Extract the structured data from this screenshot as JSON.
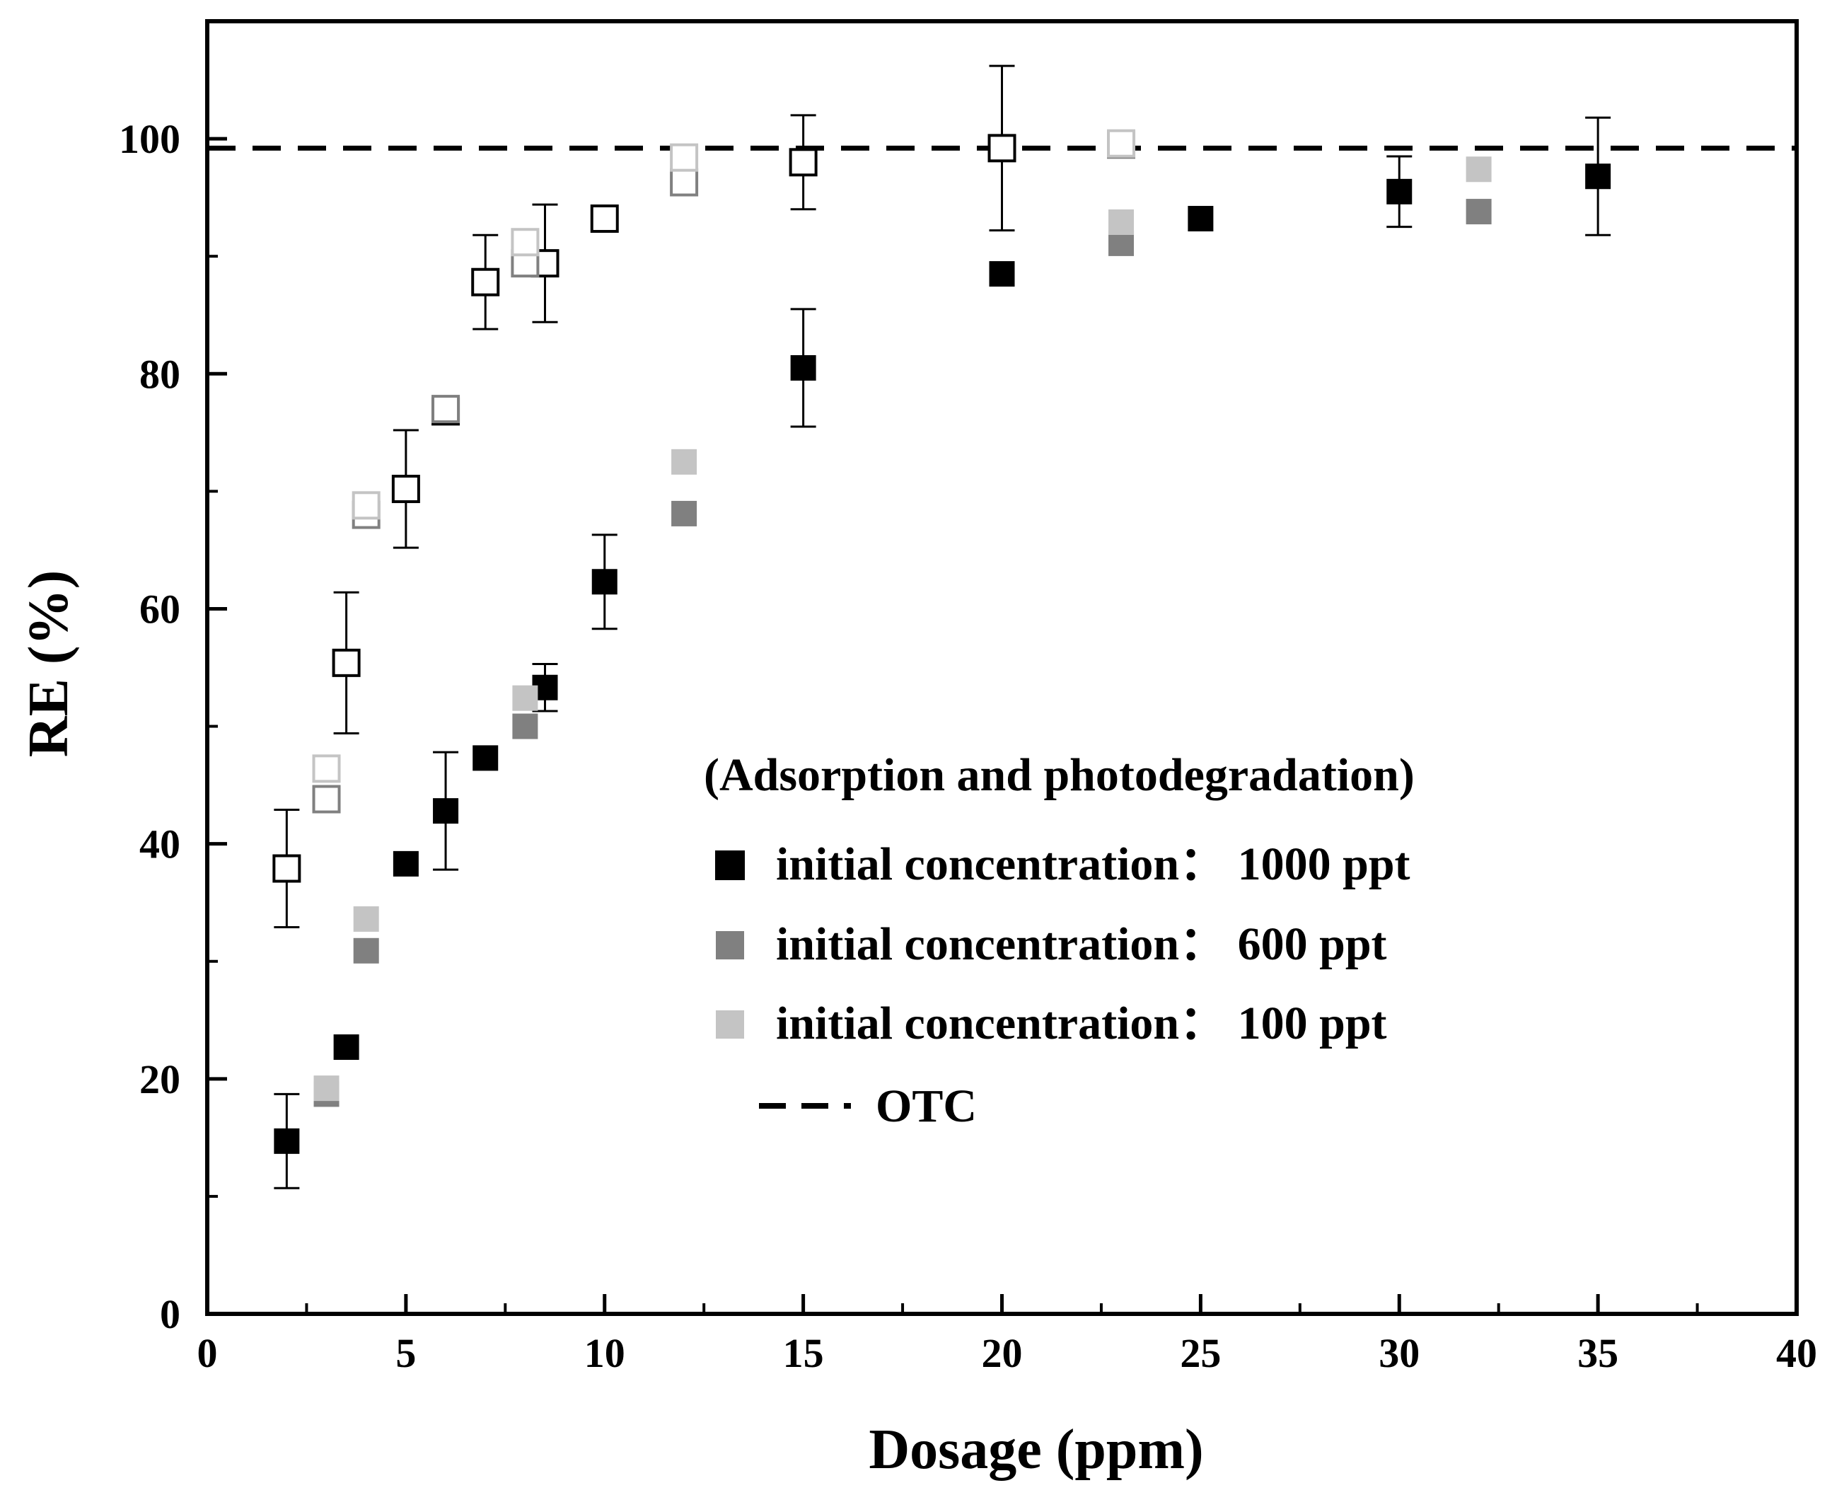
{
  "chart_data": {
    "type": "scatter",
    "xlabel": "Dosage (ppm)",
    "ylabel": "RE (%)",
    "xlim": [
      0,
      40
    ],
    "ylim": [
      0,
      110
    ],
    "xticks": [
      0,
      5,
      10,
      15,
      20,
      25,
      30,
      35,
      40
    ],
    "yticks": [
      0,
      20,
      40,
      60,
      80,
      100
    ],
    "legend": {
      "title": "(Adsorption and photodegradation)",
      "position": "center-right",
      "entries": [
        {
          "label": "initial concentration：  1000 ppt",
          "color": "#000000",
          "marker": "filled-square"
        },
        {
          "label": "initial concentration：  600 ppt",
          "color": "#808080",
          "marker": "filled-square"
        },
        {
          "label": "initial concentration：  100 ppt",
          "color": "#c4c4c4",
          "marker": "filled-square"
        },
        {
          "label": "OTC",
          "color": "#000000",
          "marker": "dashed-line"
        }
      ]
    },
    "reference_line": {
      "name": "OTC",
      "y": 99.2,
      "style": "dashed",
      "color": "#000000"
    },
    "series": [
      {
        "name": "1000 ppt (filled)",
        "color": "#000000",
        "fill": true,
        "points": [
          {
            "x": 2,
            "y": 14.7,
            "err": 4
          },
          {
            "x": 3.5,
            "y": 22.7
          },
          {
            "x": 5,
            "y": 38.3
          },
          {
            "x": 6,
            "y": 42.8,
            "err": 5
          },
          {
            "x": 7,
            "y": 47.3
          },
          {
            "x": 8.5,
            "y": 53.3,
            "err": 2
          },
          {
            "x": 10,
            "y": 62.3,
            "err": 4
          },
          {
            "x": 15,
            "y": 80.5,
            "err": 5
          },
          {
            "x": 20,
            "y": 88.5
          },
          {
            "x": 25,
            "y": 93.2
          },
          {
            "x": 30,
            "y": 95.5,
            "err": 3
          },
          {
            "x": 35,
            "y": 96.8,
            "err": 5
          }
        ]
      },
      {
        "name": "600 ppt (filled)",
        "color": "#808080",
        "fill": true,
        "points": [
          {
            "x": 3,
            "y": 18.7
          },
          {
            "x": 4,
            "y": 30.9
          },
          {
            "x": 8,
            "y": 50.0
          },
          {
            "x": 12,
            "y": 68.1
          },
          {
            "x": 23,
            "y": 91.1
          },
          {
            "x": 32,
            "y": 93.8
          }
        ]
      },
      {
        "name": "100 ppt (filled)",
        "color": "#c4c4c4",
        "fill": true,
        "points": [
          {
            "x": 3,
            "y": 19.2
          },
          {
            "x": 4,
            "y": 33.6
          },
          {
            "x": 8,
            "y": 52.4
          },
          {
            "x": 12,
            "y": 72.5
          },
          {
            "x": 23,
            "y": 92.9
          },
          {
            "x": 32,
            "y": 97.4
          }
        ]
      },
      {
        "name": "1000 ppt (open)",
        "color": "#000000",
        "fill": false,
        "points": [
          {
            "x": 2,
            "y": 37.9,
            "err": 5
          },
          {
            "x": 3.5,
            "y": 55.4,
            "err": 6
          },
          {
            "x": 5,
            "y": 70.2,
            "err": 5
          },
          {
            "x": 6,
            "y": 76.8
          },
          {
            "x": 7,
            "y": 87.8,
            "err": 4
          },
          {
            "x": 8.5,
            "y": 89.4,
            "err": 5
          },
          {
            "x": 10,
            "y": 93.2
          },
          {
            "x": 15,
            "y": 98.0,
            "err": 4
          },
          {
            "x": 20,
            "y": 99.2,
            "err": 7
          }
        ]
      },
      {
        "name": "600 ppt (open)",
        "color": "#808080",
        "fill": false,
        "points": [
          {
            "x": 3,
            "y": 43.8
          },
          {
            "x": 4,
            "y": 68.0
          },
          {
            "x": 6,
            "y": 77.0
          },
          {
            "x": 8,
            "y": 89.4
          },
          {
            "x": 12,
            "y": 96.3
          },
          {
            "x": 23,
            "y": 99.5
          }
        ]
      },
      {
        "name": "100 ppt (open)",
        "color": "#c4c4c4",
        "fill": false,
        "points": [
          {
            "x": 3,
            "y": 46.4
          },
          {
            "x": 4,
            "y": 68.8
          },
          {
            "x": 8,
            "y": 91.2
          },
          {
            "x": 12,
            "y": 98.4
          },
          {
            "x": 23,
            "y": 99.6
          }
        ]
      }
    ]
  }
}
